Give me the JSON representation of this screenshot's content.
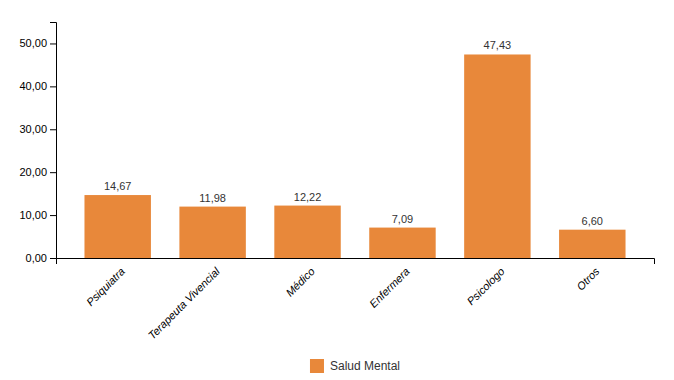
{
  "chart_data": {
    "type": "bar",
    "categories": [
      "Psiquiatra",
      "Terapeuta Vivencial",
      "Médico",
      "Enfermera",
      "Psicologo",
      "Otros"
    ],
    "series": [
      {
        "name": "Salud Mental",
        "color": "#E8883A",
        "values": [
          14.67,
          11.98,
          12.22,
          7.09,
          47.43,
          6.6
        ],
        "value_labels": [
          "14,67",
          "11,98",
          "12,22",
          "7,09",
          "47,43",
          "6,60"
        ]
      }
    ],
    "ylim": [
      0,
      55
    ],
    "yticks": [
      {
        "value": 0,
        "label": "0,00"
      },
      {
        "value": 10,
        "label": "10,00"
      },
      {
        "value": 20,
        "label": "20,00"
      },
      {
        "value": 30,
        "label": "30,00"
      },
      {
        "value": 40,
        "label": "40,00"
      },
      {
        "value": 50,
        "label": "50,00"
      }
    ],
    "data_labels": true,
    "grid": false,
    "legend": "bottom"
  }
}
